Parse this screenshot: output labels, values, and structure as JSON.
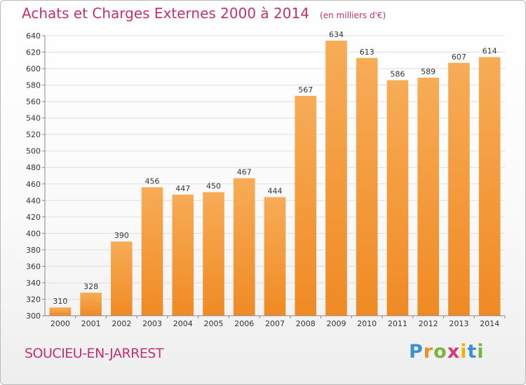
{
  "chart_data": {
    "type": "bar",
    "title": "Achats et Charges Externes 2000 à 2014",
    "unit_note": "(en milliers d'€)",
    "categories": [
      "2000",
      "2001",
      "2002",
      "2003",
      "2004",
      "2005",
      "2006",
      "2007",
      "2008",
      "2009",
      "2010",
      "2011",
      "2012",
      "2013",
      "2014"
    ],
    "values": [
      310,
      328,
      390,
      456,
      447,
      450,
      467,
      444,
      567,
      634,
      613,
      586,
      589,
      607,
      614
    ],
    "ylim": [
      300,
      640
    ],
    "y_ticks": [
      300,
      320,
      340,
      360,
      380,
      400,
      420,
      440,
      460,
      480,
      500,
      520,
      540,
      560,
      580,
      600,
      620,
      640
    ],
    "grid": true,
    "bar_color": "#f08a24",
    "bar_color_light": "#f7ac56",
    "xlabel": "",
    "ylabel": ""
  },
  "city": "SOUCIEU-EN-JARREST",
  "brand": {
    "letters": [
      "P",
      "r",
      "o",
      "x",
      "i",
      "t",
      "i"
    ],
    "colors": [
      "#3b8fd6",
      "#e8902a",
      "#7ab43c",
      "#d23b7a",
      "#f0b400",
      "#3b8fd6",
      "#7ab43c"
    ]
  },
  "colors": {
    "title": "#c0326e",
    "grid": "#dddddd",
    "axis": "#888888",
    "text": "#333333"
  }
}
